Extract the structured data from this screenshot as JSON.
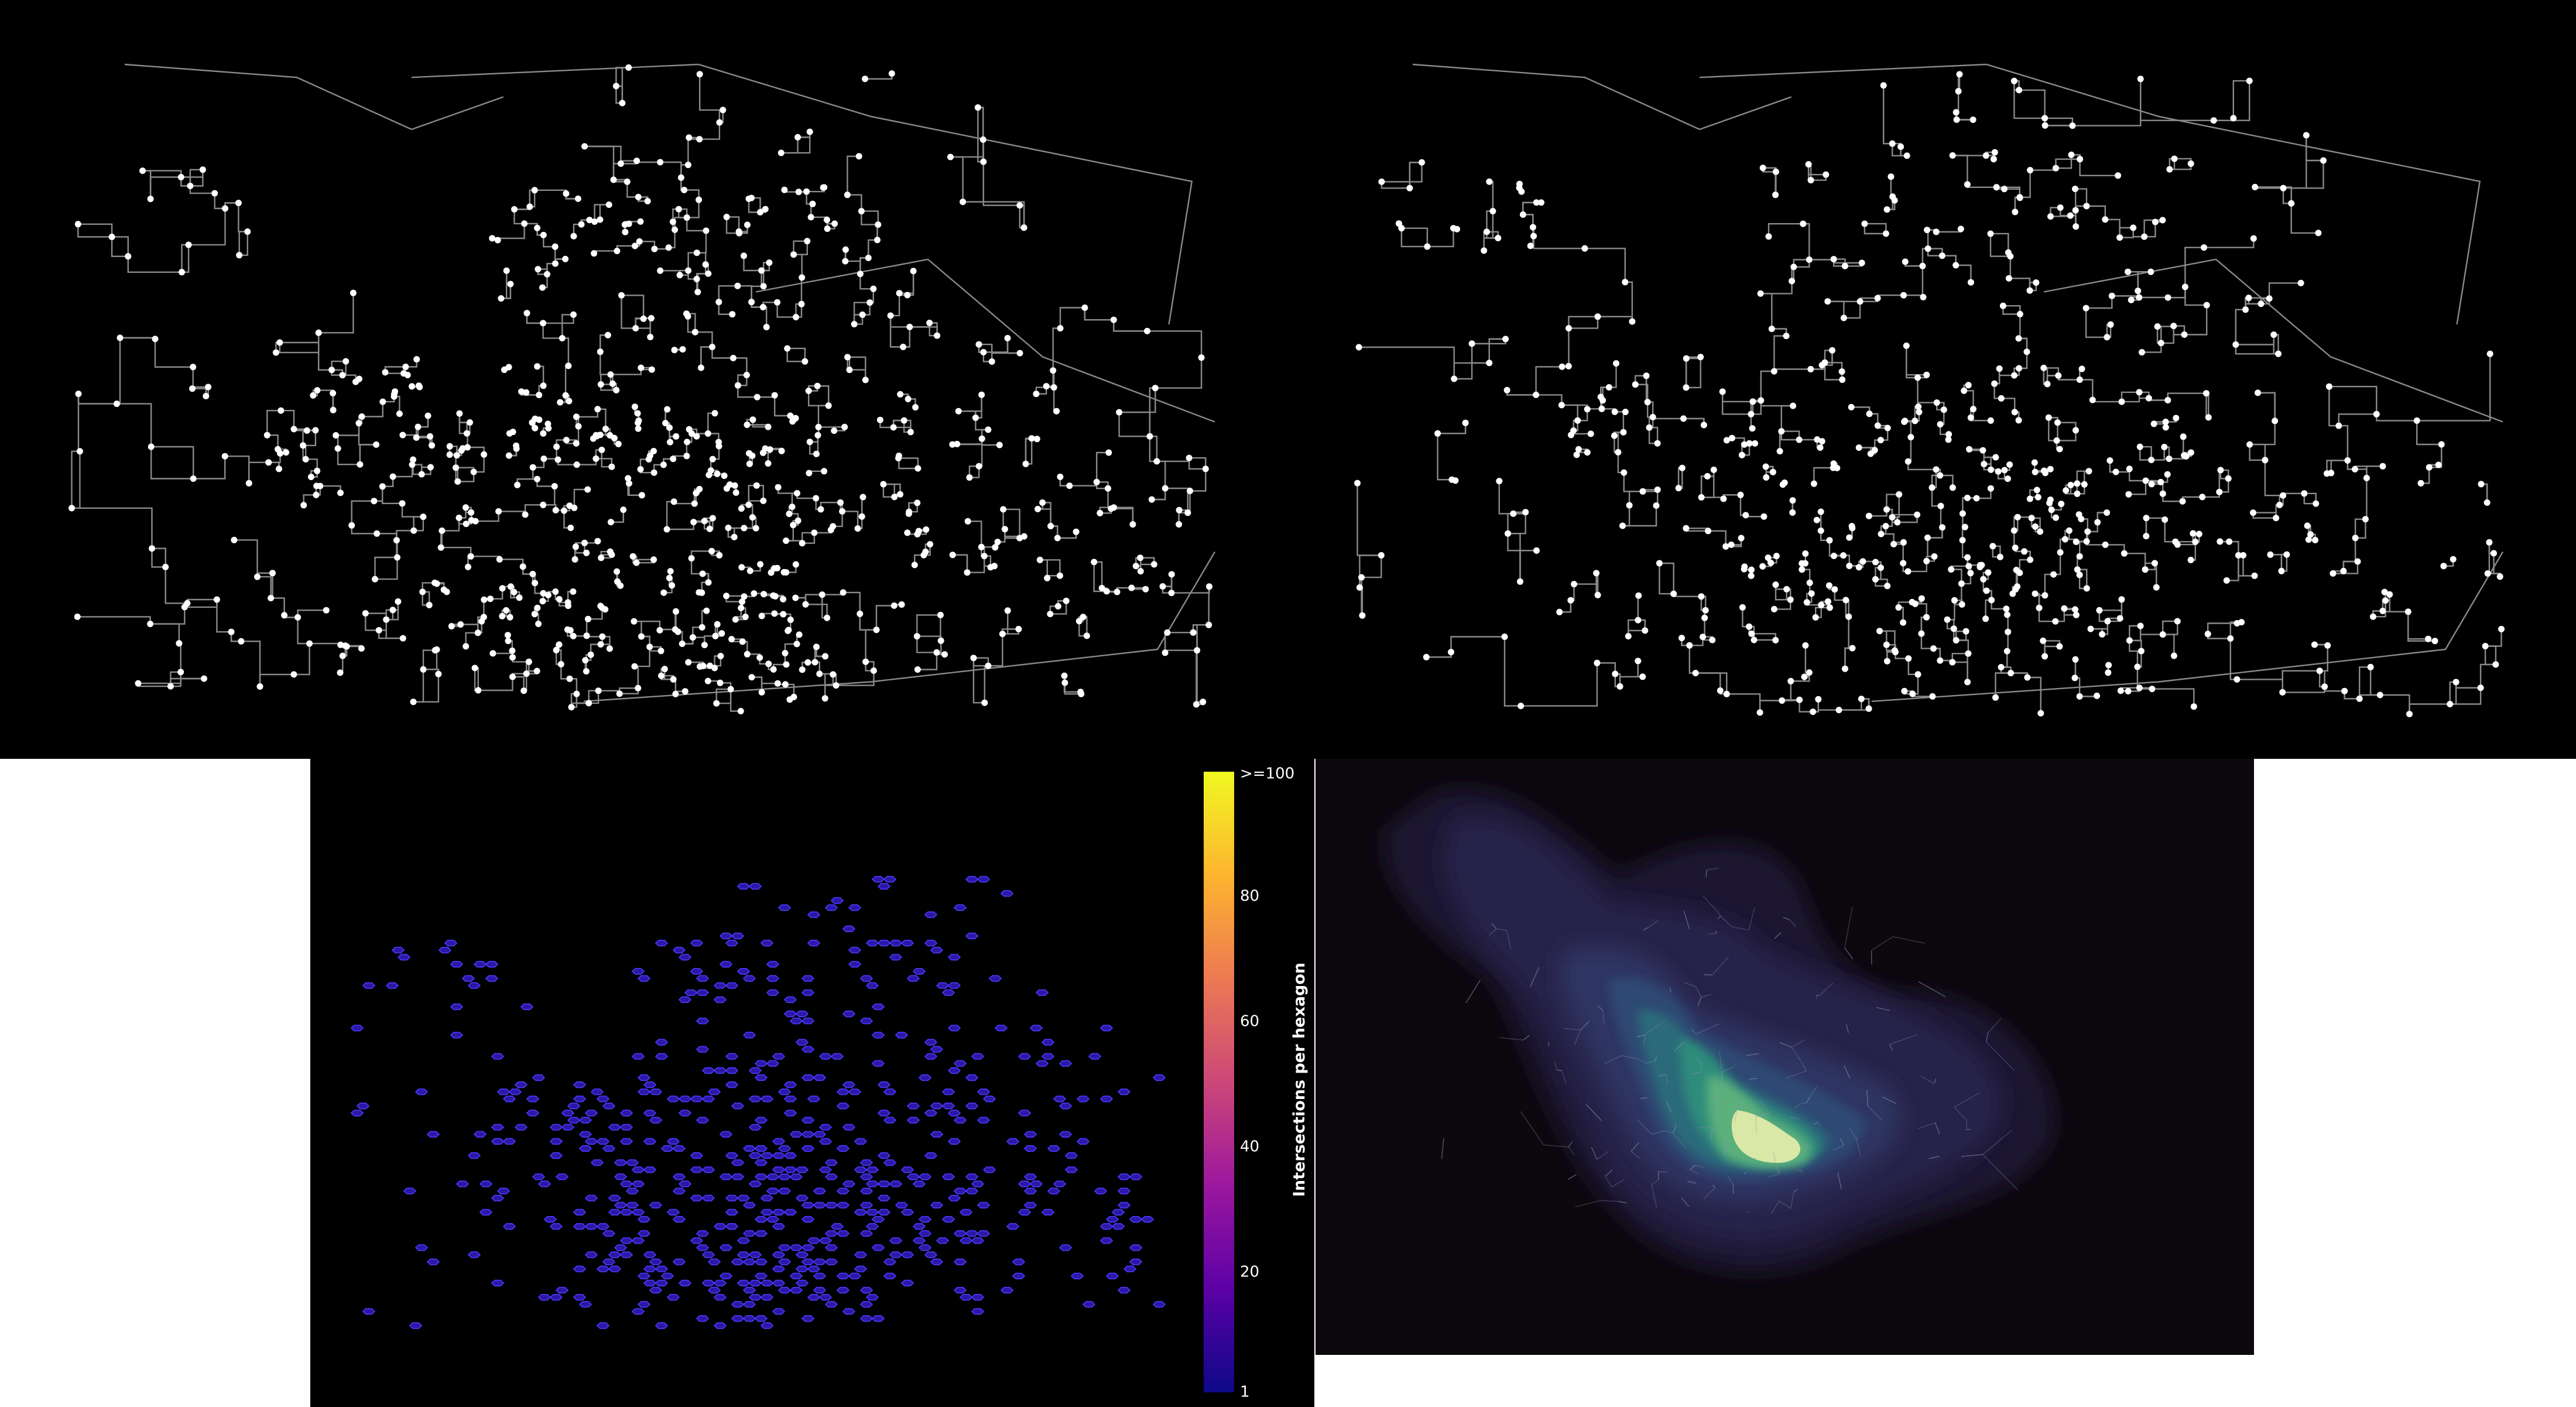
{
  "panels": [
    {
      "id": "street-network-nodes",
      "kind": "street network with intersection nodes"
    },
    {
      "id": "street-network-simplified",
      "kind": "street network with intersection nodes"
    },
    {
      "id": "hexbin-intersections",
      "kind": "hexbin density"
    },
    {
      "id": "kde-intersections",
      "kind": "kernel density"
    }
  ],
  "colorbar": {
    "title": "Intersections per hexagon",
    "ticks": [
      "1",
      "20",
      "40",
      "60",
      "80",
      ">=100"
    ],
    "colormap_stops": [
      "#0d0887",
      "#5c01a6",
      "#9c179e",
      "#cc4778",
      "#ed7953",
      "#fdb42f",
      "#f0f921"
    ]
  },
  "colors": {
    "background": "#000000",
    "street": "#8a8a8a",
    "node": "#ffffff",
    "hex_fill": "#2d17a6",
    "hex_edge": "#4a3cff",
    "kde_background": "#0c080d",
    "kde_levels": [
      "#1b1730",
      "#26234a",
      "#2f3562",
      "#2e4a73",
      "#2b6a7a",
      "#2f8c7c",
      "#5bb07c",
      "#d9e8a6"
    ]
  },
  "chart_data": {
    "type": "heatmap",
    "title": "",
    "colorbar_label": "Intersections per hexagon",
    "colorbar_range": [
      1,
      100
    ],
    "colorbar_ticks": [
      "1",
      "20",
      "40",
      "60",
      "80",
      ">=100"
    ]
  }
}
